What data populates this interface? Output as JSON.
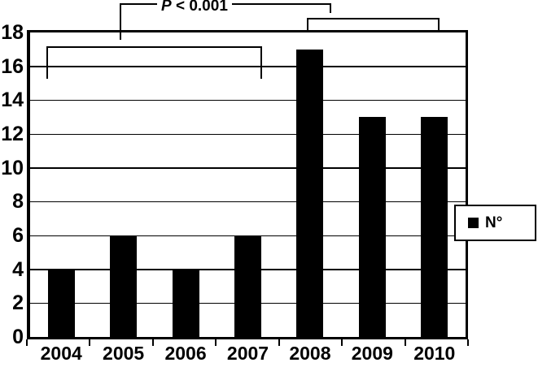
{
  "chart_data": {
    "type": "bar",
    "title": "",
    "xlabel": "",
    "ylabel": "",
    "categories": [
      "2004",
      "2005",
      "2006",
      "2007",
      "2008",
      "2009",
      "2010"
    ],
    "values": [
      4,
      6,
      4,
      6,
      17,
      13,
      13
    ],
    "ylim": [
      0,
      18
    ],
    "yticks": [
      0,
      2,
      4,
      6,
      8,
      10,
      12,
      14,
      16,
      18
    ],
    "grid": "horizontal",
    "bar_color": "#000000",
    "background_color": "#ffffff",
    "legend": {
      "position": "right",
      "entries": [
        {
          "label": "N°",
          "marker": "filled-square",
          "marker_color": "#000000"
        }
      ]
    },
    "annotations": [
      {
        "type": "significance-bracket",
        "label_italic": "P",
        "label_rest": " < 0.001",
        "spans_categories": [
          "2005",
          "2008"
        ]
      },
      {
        "type": "significance-bracket",
        "label_italic": "",
        "label_rest": "",
        "spans_categories": [
          "2004",
          "2007"
        ]
      },
      {
        "type": "significance-bracket",
        "label_italic": "",
        "label_rest": "",
        "spans_categories": [
          "2008",
          "2010"
        ]
      }
    ]
  }
}
